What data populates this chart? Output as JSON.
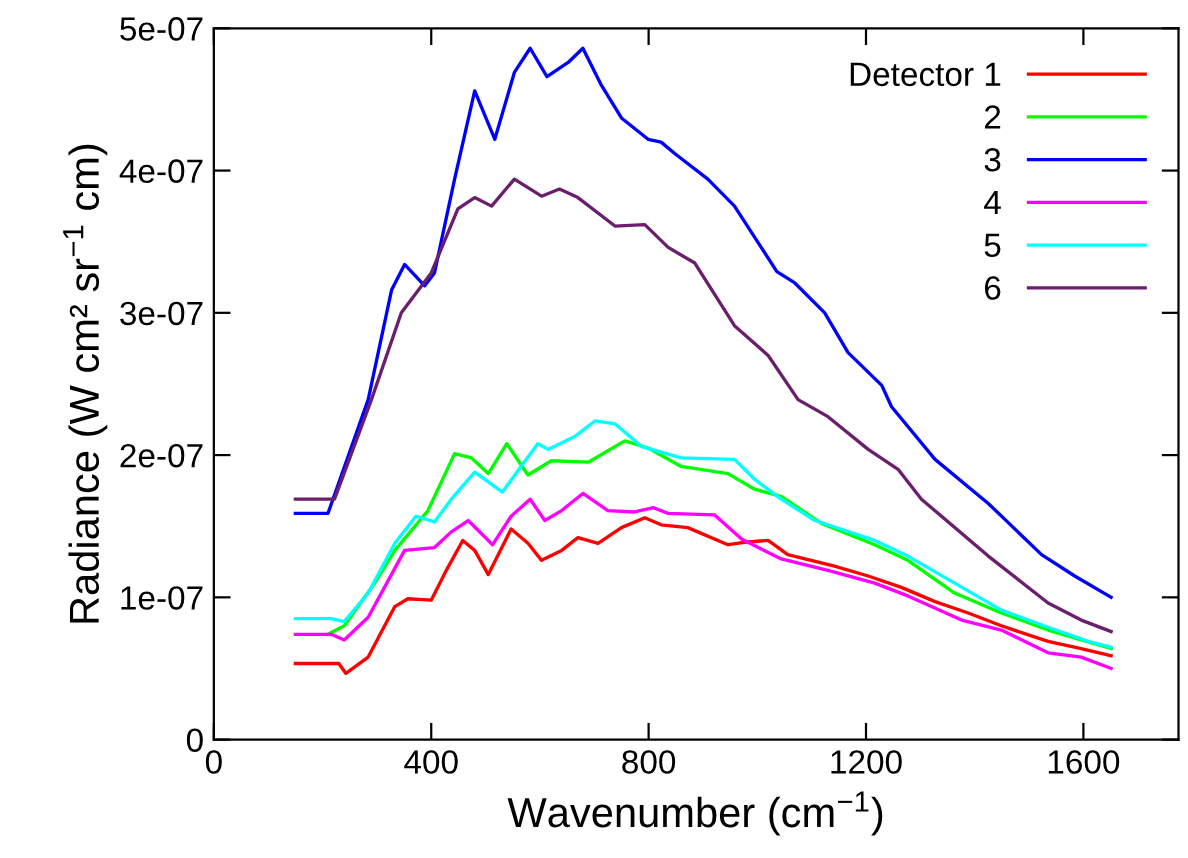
{
  "chart_data": {
    "type": "line",
    "xlabel": "Wavenumber (cm$^{−1}$)",
    "ylabel": "Radiance (W cm² sr$^{−1}$ cm)",
    "xlim": [
      0,
      1775
    ],
    "xticks": [
      0,
      400,
      800,
      1200,
      1600
    ],
    "ylim": [
      0,
      5e-07
    ],
    "yticks": [
      0,
      1e-07,
      2e-07,
      3e-07,
      4e-07,
      5e-07
    ],
    "grid": false,
    "legend": "top right",
    "marker": "none",
    "line_style": "solid",
    "series": [
      {
        "name": "Detector 1",
        "color": "#ff0000",
        "x": [
          150,
          230,
          243,
          284,
          333,
          357,
          400,
          425,
          458,
          480,
          505,
          547,
          578,
          603,
          640,
          670,
          707,
          750,
          793,
          823,
          872,
          946,
          983,
          1020,
          1056,
          1142,
          1204,
          1265,
          1327,
          1388,
          1449,
          1535,
          1596,
          1651
        ],
        "values": [
          5.35e-08,
          5.35e-08,
          4.65e-08,
          5.8e-08,
          9.35e-08,
          9.9e-08,
          9.8e-08,
          1.17e-07,
          1.4e-07,
          1.33e-07,
          1.16e-07,
          1.48e-07,
          1.38e-07,
          1.26e-07,
          1.33e-07,
          1.42e-07,
          1.38e-07,
          1.49e-07,
          1.56e-07,
          1.51e-07,
          1.49e-07,
          1.37e-07,
          1.39e-07,
          1.4e-07,
          1.3e-07,
          1.22e-07,
          1.15e-07,
          1.07e-07,
          9.7e-08,
          8.9e-08,
          8e-08,
          6.9e-08,
          6.4e-08,
          5.9e-08
        ]
      },
      {
        "name": "2",
        "color": "#00ff00",
        "x": [
          210,
          240,
          296,
          333,
          394,
          443,
          474,
          505,
          539,
          578,
          621,
          689,
          756,
          799,
          860,
          946,
          995,
          1044,
          1118,
          1216,
          1277,
          1363,
          1449,
          1535,
          1596,
          1651
        ],
        "values": [
          7.4e-08,
          8e-08,
          1.1e-07,
          1.33e-07,
          1.61e-07,
          2.01e-07,
          1.98e-07,
          1.87e-07,
          2.08e-07,
          1.86e-07,
          1.96e-07,
          1.95e-07,
          2.1e-07,
          2.05e-07,
          1.92e-07,
          1.87e-07,
          1.76e-07,
          1.71e-07,
          1.52e-07,
          1.37e-07,
          1.26e-07,
          1.03e-07,
          8.9e-08,
          7.7e-08,
          7e-08,
          6.4e-08
        ]
      },
      {
        "name": "3",
        "color": "#0000ff",
        "x": [
          150,
          210,
          284,
          327,
          351,
          388,
          406,
          443,
          480,
          517,
          553,
          582,
          613,
          652,
          679,
          713,
          750,
          799,
          823,
          848,
          909,
          958,
          1036,
          1069,
          1124,
          1167,
          1229,
          1247,
          1327,
          1425,
          1523,
          1584,
          1651
        ],
        "values": [
          1.59e-07,
          1.59e-07,
          2.39e-07,
          3.16e-07,
          3.34e-07,
          3.19e-07,
          3.28e-07,
          3.94e-07,
          4.56e-07,
          4.22e-07,
          4.69e-07,
          4.86e-07,
          4.66e-07,
          4.76e-07,
          4.86e-07,
          4.6e-07,
          4.37e-07,
          4.22e-07,
          4.2e-07,
          4.12e-07,
          3.94e-07,
          3.75e-07,
          3.29e-07,
          3.21e-07,
          3e-07,
          2.72e-07,
          2.49e-07,
          2.34e-07,
          1.97e-07,
          1.66e-07,
          1.3e-07,
          1.15e-07,
          1e-07
        ]
      },
      {
        "name": "4",
        "color": "#ff00ff",
        "x": [
          150,
          216,
          240,
          284,
          351,
          406,
          437,
          468,
          513,
          547,
          582,
          609,
          640,
          679,
          725,
          774,
          809,
          836,
          921,
          971,
          1044,
          1130,
          1216,
          1277,
          1376,
          1449,
          1535,
          1596,
          1651
        ],
        "values": [
          7.4e-08,
          7.4e-08,
          7e-08,
          8.6e-08,
          1.33e-07,
          1.35e-07,
          1.46e-07,
          1.54e-07,
          1.37e-07,
          1.57e-07,
          1.69e-07,
          1.54e-07,
          1.61e-07,
          1.73e-07,
          1.61e-07,
          1.6e-07,
          1.63e-07,
          1.59e-07,
          1.58e-07,
          1.41e-07,
          1.27e-07,
          1.19e-07,
          1.1e-07,
          1.01e-07,
          8.4e-08,
          7.7e-08,
          6.1e-08,
          5.8e-08,
          5e-08
        ]
      },
      {
        "name": "5",
        "color": "#00ffff",
        "x": [
          150,
          216,
          240,
          284,
          333,
          372,
          406,
          437,
          480,
          531,
          596,
          615,
          664,
          701,
          738,
          787,
          860,
          958,
          995,
          1044,
          1106,
          1216,
          1277,
          1363,
          1449,
          1535,
          1609,
          1651
        ],
        "values": [
          8.5e-08,
          8.5e-08,
          8.3e-08,
          1.03e-07,
          1.38e-07,
          1.57e-07,
          1.53e-07,
          1.69e-07,
          1.88e-07,
          1.74e-07,
          2.08e-07,
          2.04e-07,
          2.13e-07,
          2.24e-07,
          2.22e-07,
          2.06e-07,
          1.98e-07,
          1.97e-07,
          1.83e-07,
          1.69e-07,
          1.54e-07,
          1.4e-07,
          1.29e-07,
          1.1e-07,
          9.1e-08,
          7.9e-08,
          6.9e-08,
          6.5e-08
        ]
      },
      {
        "name": "6",
        "color": "#6b1e6b",
        "x": [
          150,
          222,
          290,
          345,
          400,
          449,
          480,
          511,
          553,
          603,
          636,
          670,
          738,
          793,
          836,
          885,
          958,
          1020,
          1075,
          1130,
          1204,
          1259,
          1302,
          1425,
          1535,
          1596,
          1651
        ],
        "values": [
          1.69e-07,
          1.69e-07,
          2.39e-07,
          3e-07,
          3.28e-07,
          3.73e-07,
          3.81e-07,
          3.75e-07,
          3.94e-07,
          3.82e-07,
          3.87e-07,
          3.81e-07,
          3.61e-07,
          3.62e-07,
          3.46e-07,
          3.35e-07,
          2.91e-07,
          2.7e-07,
          2.39e-07,
          2.27e-07,
          2.04e-07,
          1.9e-07,
          1.69e-07,
          1.29e-07,
          9.6e-08,
          8.4e-08,
          7.6e-08
        ]
      }
    ]
  }
}
